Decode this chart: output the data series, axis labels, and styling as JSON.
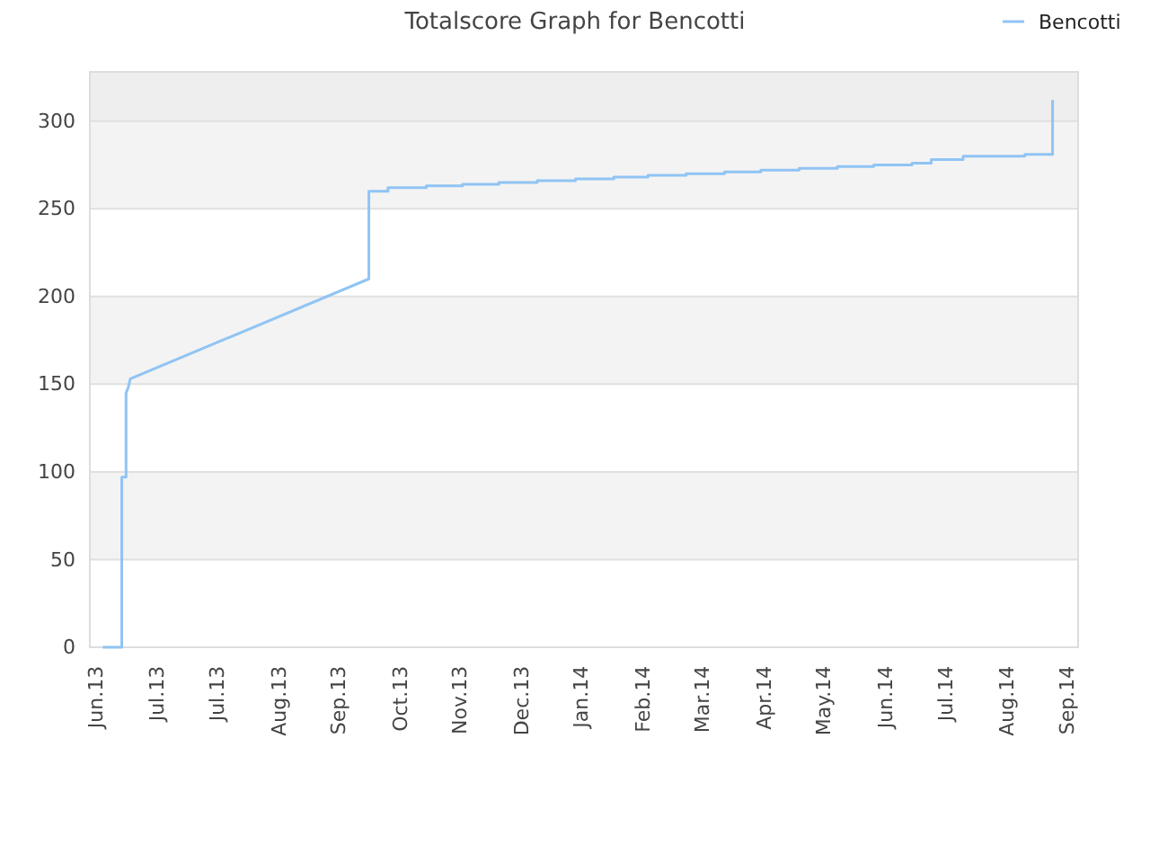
{
  "chart_data": {
    "type": "line",
    "title": "Totalscore Graph for Bencotti",
    "x": [
      "2013-06-09",
      "2013-06-18",
      "2013-06-18",
      "2013-06-20",
      "2013-06-20",
      "2013-06-21",
      "2013-06-22",
      "2013-10-12",
      "2013-10-12",
      "2013-10-21",
      "2013-10-21",
      "2013-11-08",
      "2013-11-08",
      "2013-11-25",
      "2013-11-25",
      "2013-12-12",
      "2013-12-12",
      "2013-12-30",
      "2013-12-30",
      "2014-01-17",
      "2014-01-17",
      "2014-02-04",
      "2014-02-04",
      "2014-02-20",
      "2014-02-20",
      "2014-03-10",
      "2014-03-10",
      "2014-03-28",
      "2014-03-28",
      "2014-04-14",
      "2014-04-14",
      "2014-05-02",
      "2014-05-02",
      "2014-05-20",
      "2014-05-20",
      "2014-06-06",
      "2014-06-06",
      "2014-06-24",
      "2014-06-24",
      "2014-07-03",
      "2014-07-03",
      "2014-07-18",
      "2014-07-18",
      "2014-08-16",
      "2014-08-16",
      "2014-08-29",
      "2014-08-29"
    ],
    "series": [
      {
        "name": "Bencotti",
        "color": "#90c4f4",
        "values": [
          0,
          0,
          97,
          97,
          145,
          148,
          153,
          210,
          260,
          260,
          262,
          262,
          263,
          263,
          264,
          264,
          265,
          265,
          266,
          266,
          267,
          267,
          268,
          268,
          269,
          269,
          270,
          270,
          271,
          271,
          272,
          272,
          273,
          273,
          274,
          274,
          275,
          275,
          276,
          276,
          278,
          278,
          280,
          280,
          281,
          281,
          312
        ]
      }
    ],
    "xlim": [
      "2013-06-03",
      "2014-09-10"
    ],
    "xticks": [
      {
        "value": "2013-06-03",
        "label": "Jun.13"
      },
      {
        "value": "2013-07-02",
        "label": "Jul.13"
      },
      {
        "value": "2013-07-30",
        "label": "Jul.13"
      },
      {
        "value": "2013-08-28",
        "label": "Aug.13"
      },
      {
        "value": "2013-09-25",
        "label": "Sep.13"
      },
      {
        "value": "2013-10-24",
        "label": "Oct.13"
      },
      {
        "value": "2013-11-21",
        "label": "Nov.13"
      },
      {
        "value": "2013-12-20",
        "label": "Dec.13"
      },
      {
        "value": "2014-01-17",
        "label": "Jan.14"
      },
      {
        "value": "2014-02-15",
        "label": "Feb.14"
      },
      {
        "value": "2014-03-15",
        "label": "Mar.14"
      },
      {
        "value": "2014-04-13",
        "label": "Apr.14"
      },
      {
        "value": "2014-05-11",
        "label": "May.14"
      },
      {
        "value": "2014-06-09",
        "label": "Jun.14"
      },
      {
        "value": "2014-07-07",
        "label": "Jul.14"
      },
      {
        "value": "2014-08-05",
        "label": "Aug.14"
      },
      {
        "value": "2014-09-02",
        "label": "Sep.14"
      }
    ],
    "ylim": [
      0,
      328
    ],
    "yticks": [
      0,
      50,
      100,
      150,
      200,
      250,
      300
    ],
    "grid": "y",
    "legend": "top right",
    "marker": "none",
    "line_style": "solid"
  }
}
